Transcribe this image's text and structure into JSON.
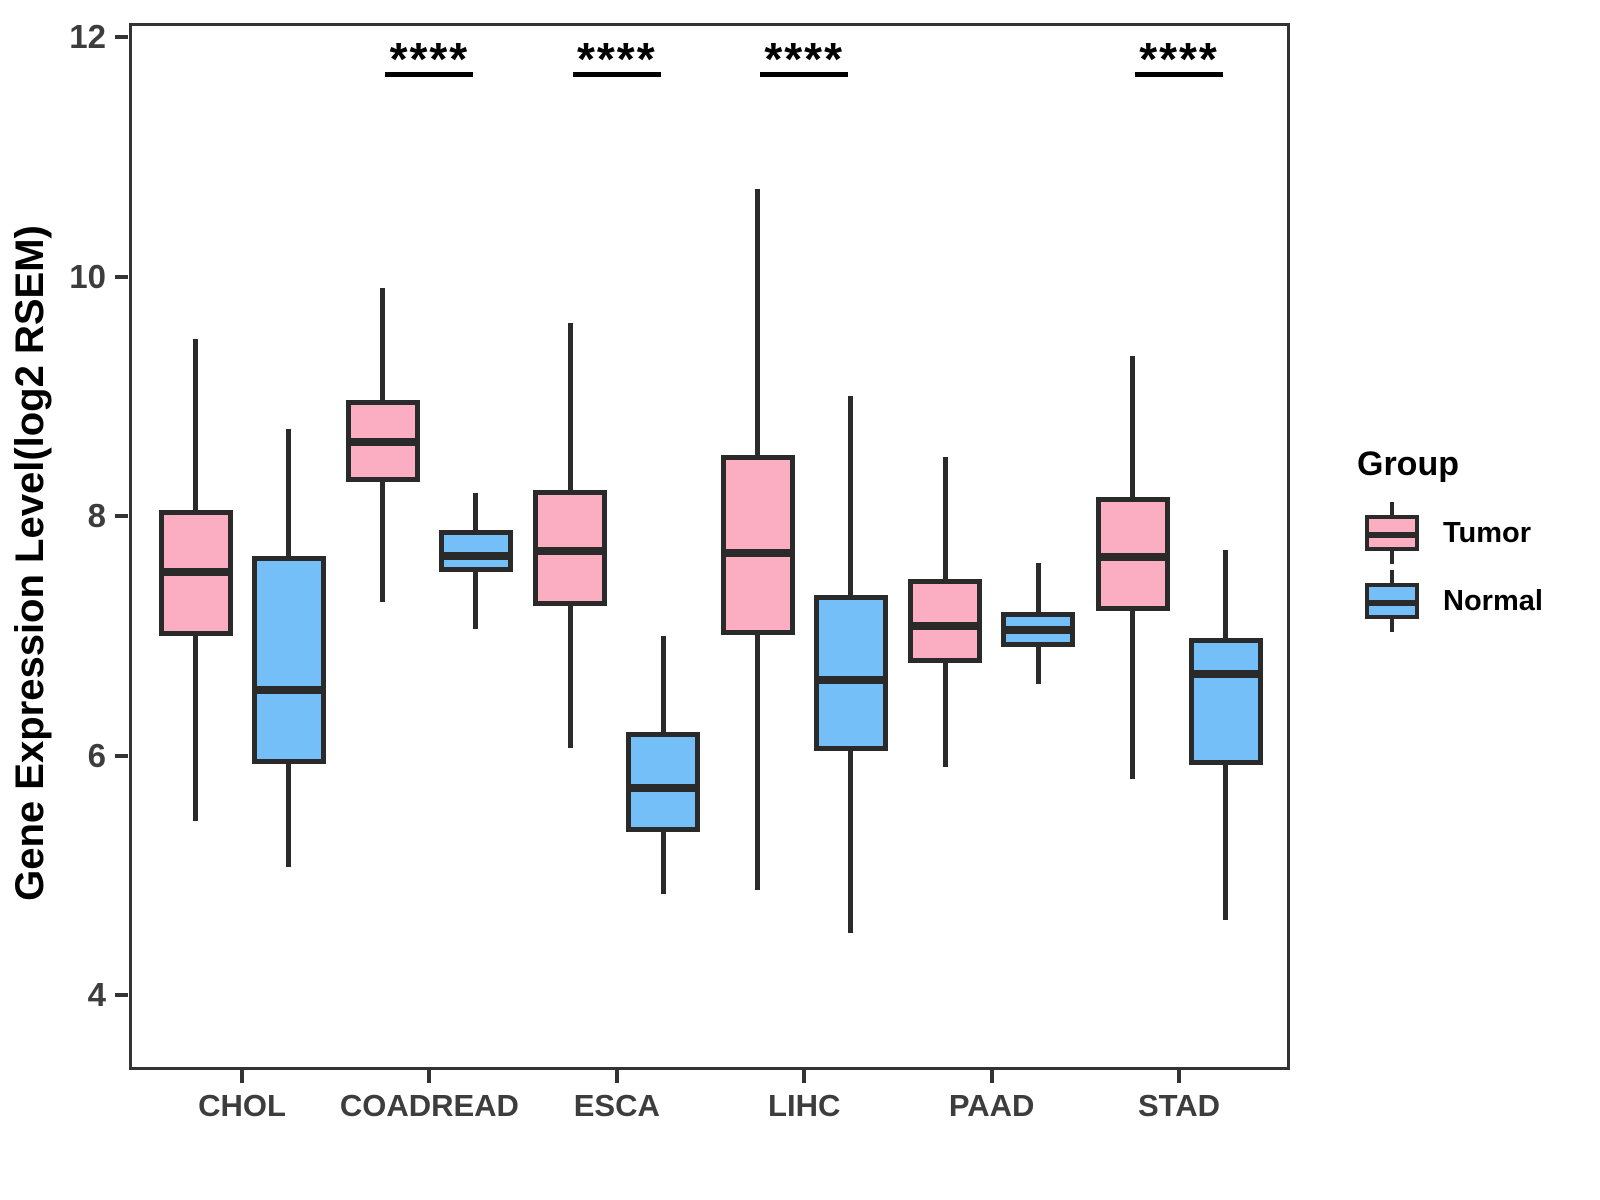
{
  "chart_data": {
    "type": "boxplot",
    "title": "",
    "xlabel": "",
    "ylabel": "Gene Expression Level(log2 RSEM)",
    "categories": [
      "CHOL",
      "COADREAD",
      "ESCA",
      "LIHC",
      "PAAD",
      "STAD"
    ],
    "y_ticks": [
      12,
      10,
      8,
      6,
      4
    ],
    "ylim": [
      3.4,
      12.1
    ],
    "grid": false,
    "legend": {
      "title": "Group",
      "position": "right",
      "items": [
        {
          "label": "Tumor",
          "color": "#FBAEC2"
        },
        {
          "label": "Normal",
          "color": "#74BFF7"
        }
      ]
    },
    "series": [
      {
        "name": "Tumor",
        "color": "#FBAEC2",
        "boxes": [
          {
            "category": "CHOL",
            "min": 5.45,
            "q1": 7.0,
            "median": 7.53,
            "q3": 8.05,
            "max": 9.48
          },
          {
            "category": "COADREAD",
            "min": 7.28,
            "q1": 8.28,
            "median": 8.62,
            "q3": 8.97,
            "max": 9.9
          },
          {
            "category": "ESCA",
            "min": 6.06,
            "q1": 7.25,
            "median": 7.71,
            "q3": 8.22,
            "max": 9.61
          },
          {
            "category": "LIHC",
            "min": 4.88,
            "q1": 7.01,
            "median": 7.69,
            "q3": 8.51,
            "max": 10.73
          },
          {
            "category": "PAAD",
            "min": 5.9,
            "q1": 6.77,
            "median": 7.08,
            "q3": 7.47,
            "max": 8.49
          },
          {
            "category": "STAD",
            "min": 5.8,
            "q1": 7.21,
            "median": 7.66,
            "q3": 8.16,
            "max": 9.34
          }
        ]
      },
      {
        "name": "Normal",
        "color": "#74BFF7",
        "boxes": [
          {
            "category": "CHOL",
            "min": 5.07,
            "q1": 5.93,
            "median": 6.55,
            "q3": 7.67,
            "max": 8.73
          },
          {
            "category": "COADREAD",
            "min": 7.06,
            "q1": 7.53,
            "median": 7.67,
            "q3": 7.88,
            "max": 8.19
          },
          {
            "category": "ESCA",
            "min": 4.84,
            "q1": 5.36,
            "median": 5.73,
            "q3": 6.2,
            "max": 7.0
          },
          {
            "category": "LIHC",
            "min": 4.52,
            "q1": 6.04,
            "median": 6.63,
            "q3": 7.34,
            "max": 9.0
          },
          {
            "category": "PAAD",
            "min": 6.6,
            "q1": 6.91,
            "median": 7.05,
            "q3": 7.2,
            "max": 7.61
          },
          {
            "category": "STAD",
            "min": 4.63,
            "q1": 5.92,
            "median": 6.68,
            "q3": 6.98,
            "max": 7.72
          }
        ]
      }
    ],
    "significance": [
      {
        "category": "COADREAD",
        "label": "****"
      },
      {
        "category": "ESCA",
        "label": "****"
      },
      {
        "category": "LIHC",
        "label": "****"
      },
      {
        "category": "STAD",
        "label": "****"
      }
    ]
  }
}
